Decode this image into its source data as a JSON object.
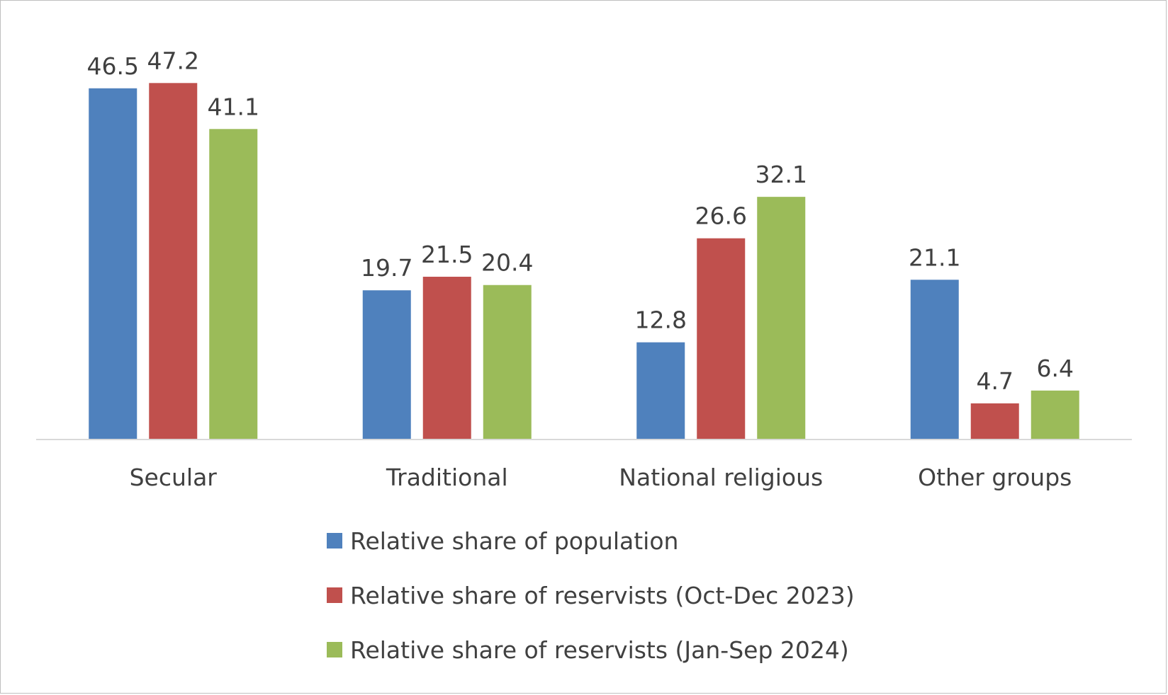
{
  "chart_data": {
    "type": "bar",
    "title": "",
    "xlabel": "",
    "ylabel": "",
    "ylim": [
      0,
      50
    ],
    "grid": false,
    "legend_position": "bottom",
    "categories": [
      "Secular",
      "Traditional",
      "National religious",
      "Other groups"
    ],
    "series": [
      {
        "name": "Relative share of population",
        "color": "#4f81bd",
        "values": [
          46.5,
          19.7,
          12.8,
          21.1
        ],
        "labels": [
          "46.5",
          "19.7",
          "12.8",
          "21.1"
        ]
      },
      {
        "name": "Relative share of reservists (Oct-Dec 2023)",
        "color": "#c0504d",
        "values": [
          47.2,
          21.5,
          26.6,
          4.7
        ],
        "labels": [
          "47.2",
          "21.5",
          "26.6",
          "4.7"
        ]
      },
      {
        "name": "Relative share of reservists (Jan-Sep 2024)",
        "color": "#9bbb59",
        "values": [
          41.1,
          20.4,
          32.1,
          6.4
        ],
        "labels": [
          "41.1",
          "20.4",
          "32.1",
          "6.4"
        ]
      }
    ]
  }
}
